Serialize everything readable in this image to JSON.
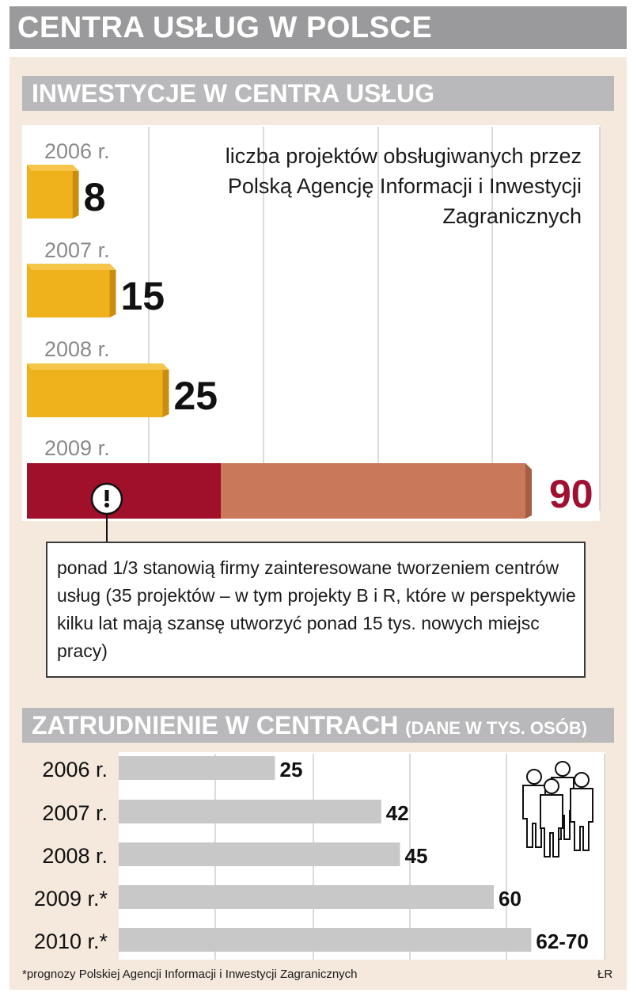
{
  "header": {
    "title": "CENTRA USŁUG W POLSCE"
  },
  "sections": {
    "investments": {
      "title": "INWESTYCJE W CENTRA USŁUG"
    },
    "employment": {
      "title": "ZATRUDNIENIE W CENTRACH",
      "subtitle": "(DANE W TYS. OSÓB)"
    }
  },
  "note": {
    "icon": "exclamation-icon",
    "text": "ponad 1/3 stanowią firmy zainteresowane tworzeniem centrów usług (35 projektów – w tym projekty B i R, które w perspektywie kilku lat mają szansę utworzyć ponad 15 tys. nowych miejsc pracy)"
  },
  "footnote": "*prognozy Polskiej Agencji Informacji i Inwestycji Zagranicznych",
  "credit": "ŁR",
  "colors": {
    "gold": "#f0b21c",
    "dark_red": "#a0102a",
    "copper": "#c9795a",
    "gray_bar": "#c8c8c8",
    "value_red": "#a01030"
  },
  "chart_data": [
    {
      "type": "bar",
      "orientation": "horizontal",
      "title": "liczba projektów obsługiwanych przez Polską Agencję Informacji i Inwestycji Zagranicznych",
      "categories": [
        "2006 r.",
        "2007 r.",
        "2008 r.",
        "2009 r."
      ],
      "values": [
        8,
        15,
        25,
        90
      ],
      "value_labels": [
        "8",
        "15",
        "25",
        "90"
      ],
      "highlight": {
        "category": "2009 r.",
        "value": 35
      },
      "grid": true
    },
    {
      "type": "bar",
      "orientation": "horizontal",
      "categories": [
        "2006 r.",
        "2007 r.",
        "2008 r.",
        "2009 r.*",
        "2010 r.*"
      ],
      "values": [
        25,
        42,
        45,
        60,
        66
      ],
      "value_labels": [
        "25",
        "42",
        "45",
        "60",
        "62-70"
      ],
      "grid": true,
      "icon": "people-icon"
    }
  ]
}
